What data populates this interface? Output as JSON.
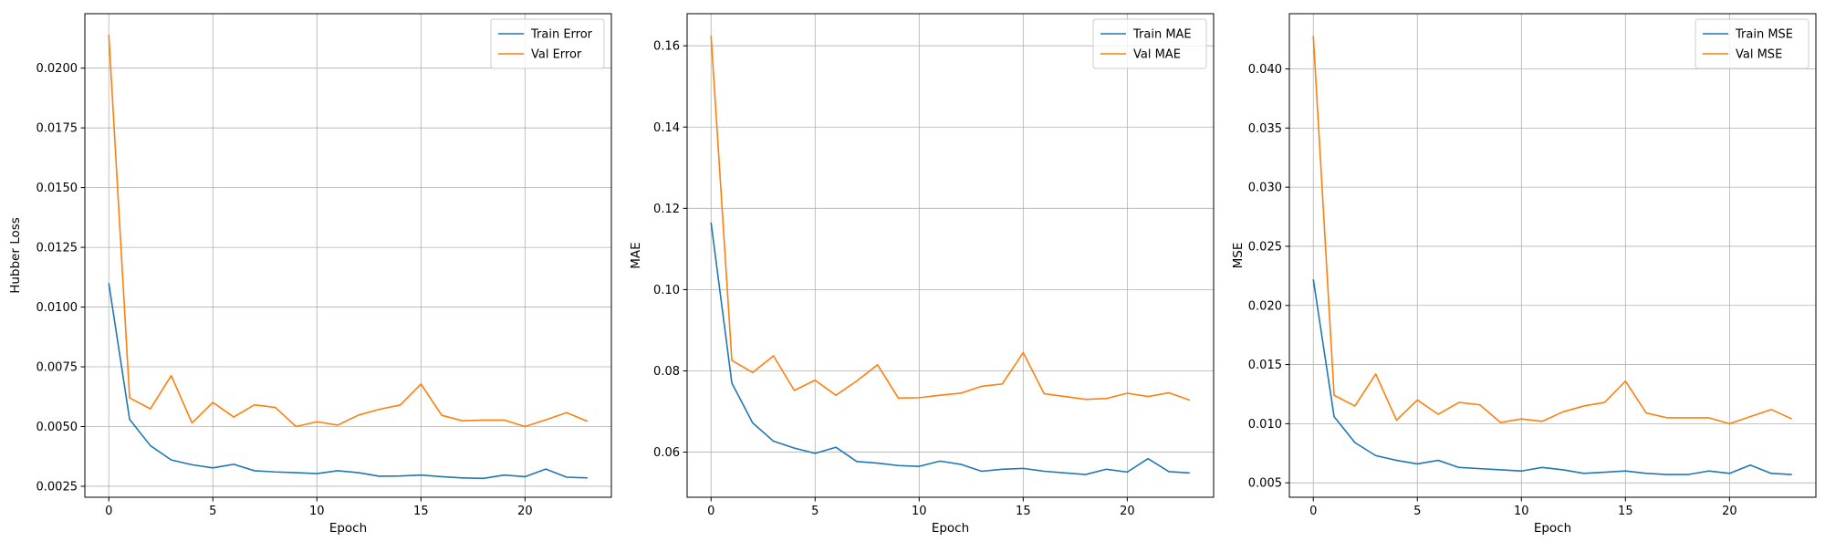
{
  "chart_data": [
    {
      "type": "line",
      "xlabel": "Epoch",
      "ylabel": "Hubber Loss",
      "xlim": [
        -1.15,
        24.15
      ],
      "ylim": [
        0.00204,
        0.02228
      ],
      "xticks": [
        0,
        5,
        10,
        15,
        20
      ],
      "xtick_labels": [
        "0",
        "5",
        "10",
        "15",
        "20"
      ],
      "yticks": [
        0.0025,
        0.005,
        0.0075,
        0.01,
        0.0125,
        0.015,
        0.0175,
        0.02
      ],
      "ytick_labels": [
        "0.0025",
        "0.0050",
        "0.0075",
        "0.0100",
        "0.0125",
        "0.0150",
        "0.0175",
        "0.0200"
      ],
      "grid": true,
      "legend_position": "top-right",
      "x": [
        0,
        1,
        2,
        3,
        4,
        5,
        6,
        7,
        8,
        9,
        10,
        11,
        12,
        13,
        14,
        15,
        16,
        17,
        18,
        19,
        20,
        21,
        22,
        23
      ],
      "series": [
        {
          "name": "Train Error",
          "color": "#1f77b4",
          "values": [
            0.011,
            0.0053,
            0.0042,
            0.0036,
            0.0034,
            0.00327,
            0.00342,
            0.00315,
            0.0031,
            0.00307,
            0.00303,
            0.00315,
            0.00307,
            0.00292,
            0.00293,
            0.00297,
            0.0029,
            0.00285,
            0.00283,
            0.00297,
            0.0029,
            0.00322,
            0.00288,
            0.00285
          ]
        },
        {
          "name": "Val Error",
          "color": "#ff7f0e",
          "values": [
            0.0214,
            0.0062,
            0.00574,
            0.00713,
            0.00515,
            0.00601,
            0.0054,
            0.00591,
            0.0058,
            0.005,
            0.0052,
            0.00506,
            0.00548,
            0.00572,
            0.0059,
            0.00678,
            0.00547,
            0.00524,
            0.00527,
            0.00527,
            0.005,
            0.00528,
            0.00558,
            0.00522
          ]
        }
      ]
    },
    {
      "type": "line",
      "xlabel": "Epoch",
      "ylabel": "MAE",
      "xlim": [
        -1.15,
        24.15
      ],
      "ylim": [
        0.0489,
        0.1679
      ],
      "xticks": [
        0,
        5,
        10,
        15,
        20
      ],
      "xtick_labels": [
        "0",
        "5",
        "10",
        "15",
        "20"
      ],
      "yticks": [
        0.06,
        0.08,
        0.1,
        0.12,
        0.14,
        0.16
      ],
      "ytick_labels": [
        "0.06",
        "0.08",
        "0.10",
        "0.12",
        "0.14",
        "0.16"
      ],
      "grid": true,
      "legend_position": "top-right",
      "x": [
        0,
        1,
        2,
        3,
        4,
        5,
        6,
        7,
        8,
        9,
        10,
        11,
        12,
        13,
        14,
        15,
        16,
        17,
        18,
        19,
        20,
        21,
        22,
        23
      ],
      "series": [
        {
          "name": "Train MAE",
          "color": "#1f77b4",
          "values": [
            0.1165,
            0.077,
            0.0672,
            0.0627,
            0.061,
            0.0597,
            0.0612,
            0.0577,
            0.0573,
            0.0567,
            0.0565,
            0.0578,
            0.057,
            0.0553,
            0.0558,
            0.056,
            0.0553,
            0.0549,
            0.0545,
            0.0558,
            0.0551,
            0.0584,
            0.0552,
            0.0549
          ]
        },
        {
          "name": "Val MAE",
          "color": "#ff7f0e",
          "values": [
            0.1625,
            0.0826,
            0.0796,
            0.0837,
            0.0752,
            0.0777,
            0.074,
            0.0775,
            0.0815,
            0.0733,
            0.0734,
            0.074,
            0.0745,
            0.0762,
            0.0768,
            0.0845,
            0.0744,
            0.0737,
            0.073,
            0.0732,
            0.0745,
            0.0737,
            0.0746,
            0.0728
          ]
        }
      ]
    },
    {
      "type": "line",
      "xlabel": "Epoch",
      "ylabel": "MSE",
      "xlim": [
        -1.15,
        24.15
      ],
      "ylim": [
        0.00378,
        0.04467
      ],
      "xticks": [
        0,
        5,
        10,
        15,
        20
      ],
      "xtick_labels": [
        "0",
        "5",
        "10",
        "15",
        "20"
      ],
      "yticks": [
        0.005,
        0.01,
        0.015,
        0.02,
        0.025,
        0.03,
        0.035,
        0.04
      ],
      "ytick_labels": [
        "0.005",
        "0.010",
        "0.015",
        "0.020",
        "0.025",
        "0.030",
        "0.035",
        "0.040"
      ],
      "grid": true,
      "legend_position": "top-right",
      "x": [
        0,
        1,
        2,
        3,
        4,
        5,
        6,
        7,
        8,
        9,
        10,
        11,
        12,
        13,
        14,
        15,
        16,
        17,
        18,
        19,
        20,
        21,
        22,
        23
      ],
      "series": [
        {
          "name": "Train MSE",
          "color": "#1f77b4",
          "values": [
            0.0222,
            0.0106,
            0.0084,
            0.0073,
            0.0069,
            0.0066,
            0.0069,
            0.0063,
            0.0062,
            0.0061,
            0.006,
            0.0063,
            0.0061,
            0.0058,
            0.0059,
            0.006,
            0.0058,
            0.0057,
            0.0057,
            0.006,
            0.0058,
            0.0065,
            0.0058,
            0.0057
          ]
        },
        {
          "name": "Val MSE",
          "color": "#ff7f0e",
          "values": [
            0.0428,
            0.0124,
            0.0115,
            0.0142,
            0.0103,
            0.012,
            0.0108,
            0.0118,
            0.0116,
            0.0101,
            0.0104,
            0.0102,
            0.011,
            0.0115,
            0.0118,
            0.0136,
            0.0109,
            0.0105,
            0.0105,
            0.0105,
            0.01,
            0.0106,
            0.0112,
            0.0104
          ]
        }
      ]
    }
  ]
}
